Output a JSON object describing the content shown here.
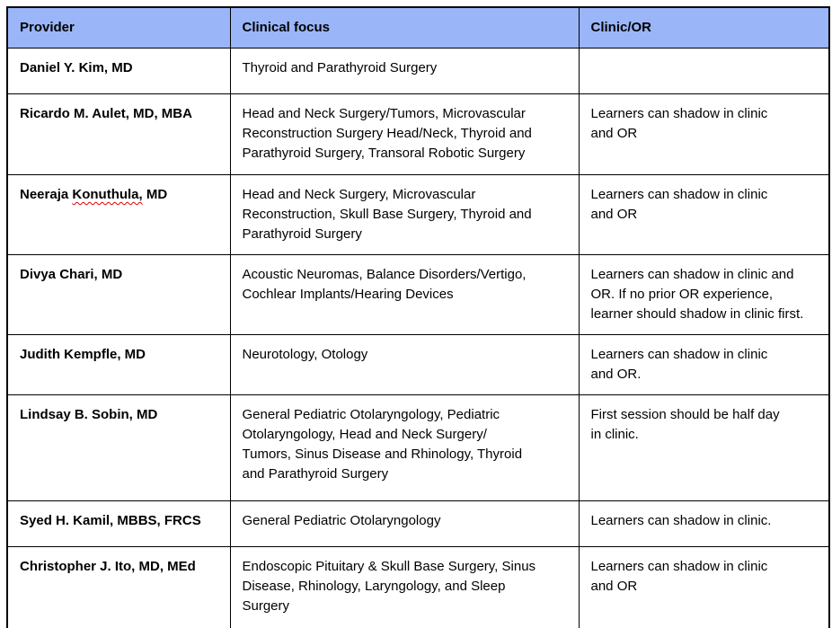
{
  "colors": {
    "header_background": "#9AB6F8",
    "border": "#000000",
    "text": "#000000",
    "spellcheck_underline": "#E00000"
  },
  "table": {
    "columns": [
      {
        "label": "Provider"
      },
      {
        "label": "Clinical focus"
      },
      {
        "label": "Clinic/OR"
      }
    ],
    "rows": [
      {
        "provider": "Daniel Y. Kim, MD",
        "clinical_focus": "Thyroid and Parathyroid Surgery",
        "clinic_or": ""
      },
      {
        "provider": "Ricardo M. Aulet, MD, MBA",
        "clinical_focus": "Head and Neck Surgery/Tumors, Microvascular\nReconstruction Surgery Head/Neck, Thyroid and\nParathyroid Surgery, Transoral Robotic Surgery",
        "clinic_or": "Learners can shadow in clinic\nand OR"
      },
      {
        "provider": "Neeraja Konuthula, MD",
        "provider_parts": {
          "before": "Neeraja ",
          "misspelled_word": "Konuthula,",
          "after": " MD"
        },
        "clinical_focus": "Head and Neck Surgery, Microvascular\nReconstruction, Skull Base Surgery, Thyroid and\nParathyroid Surgery",
        "clinic_or": "Learners can shadow in clinic\nand OR"
      },
      {
        "provider": "Divya Chari, MD",
        "clinical_focus": "Acoustic Neuromas, Balance Disorders/Vertigo,\nCochlear Implants/Hearing Devices",
        "clinic_or": "Learners can shadow in clinic and\nOR. If no prior OR experience,\nlearner should shadow in clinic first."
      },
      {
        "provider": "Judith Kempfle, MD",
        "clinical_focus": "Neurotology, Otology",
        "clinic_or": "Learners can shadow in clinic\nand OR."
      },
      {
        "provider": "Lindsay B. Sobin, MD",
        "clinical_focus": "General Pediatric Otolaryngology, Pediatric\nOtolaryngology, Head and Neck Surgery/\nTumors, Sinus Disease and Rhinology, Thyroid\nand Parathyroid Surgery",
        "clinic_or": "First session should be half day\nin clinic."
      },
      {
        "provider": "Syed H. Kamil, MBBS, FRCS",
        "clinical_focus": "General Pediatric Otolaryngology",
        "clinic_or": "Learners can shadow in clinic."
      },
      {
        "provider": "Christopher J. Ito, MD, MEd",
        "clinical_focus": "Endoscopic Pituitary & Skull Base Surgery, Sinus\nDisease, Rhinology, Laryngology, and Sleep\nSurgery",
        "clinic_or": "Learners can shadow in clinic\nand OR"
      }
    ]
  }
}
